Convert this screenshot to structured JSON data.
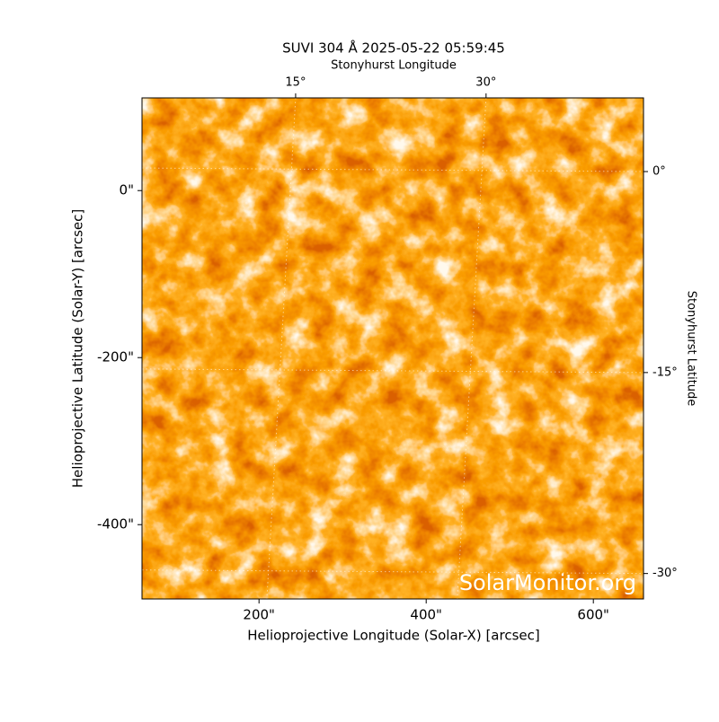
{
  "chart_data": {
    "type": "image",
    "title": "SUVI 304 Å 2025-05-22 05:59:45",
    "watermark": "SolarMonitor.org",
    "xlabel": "Helioprojective Longitude (Solar-X) [arcsec]",
    "ylabel": "Helioprojective Latitude (Solar-Y) [arcsec]",
    "x2label": "Stonyhurst Longitude",
    "y2label": "Stonyhurst Latitude",
    "xlim": [
      60,
      660
    ],
    "ylim": [
      -489,
      111
    ],
    "xticks": [
      {
        "value": 200,
        "label": "200\""
      },
      {
        "value": 400,
        "label": "400\""
      },
      {
        "value": 600,
        "label": "600\""
      }
    ],
    "yticks": [
      {
        "value": 0,
        "label": "0\""
      },
      {
        "value": -200,
        "label": "-200\""
      },
      {
        "value": -400,
        "label": "-400\""
      }
    ],
    "x2lim": [
      2.9,
      42.4
    ],
    "x2ticks": [
      {
        "value": 15,
        "label": "15°"
      },
      {
        "value": 30,
        "label": "30°"
      }
    ],
    "y2lim": [
      -31.9,
      5.5
    ],
    "y2ticks": [
      {
        "value": 0,
        "label": "0°"
      },
      {
        "value": -15,
        "label": "-15°"
      },
      {
        "value": -30,
        "label": "-30°"
      }
    ],
    "grid": true
  }
}
